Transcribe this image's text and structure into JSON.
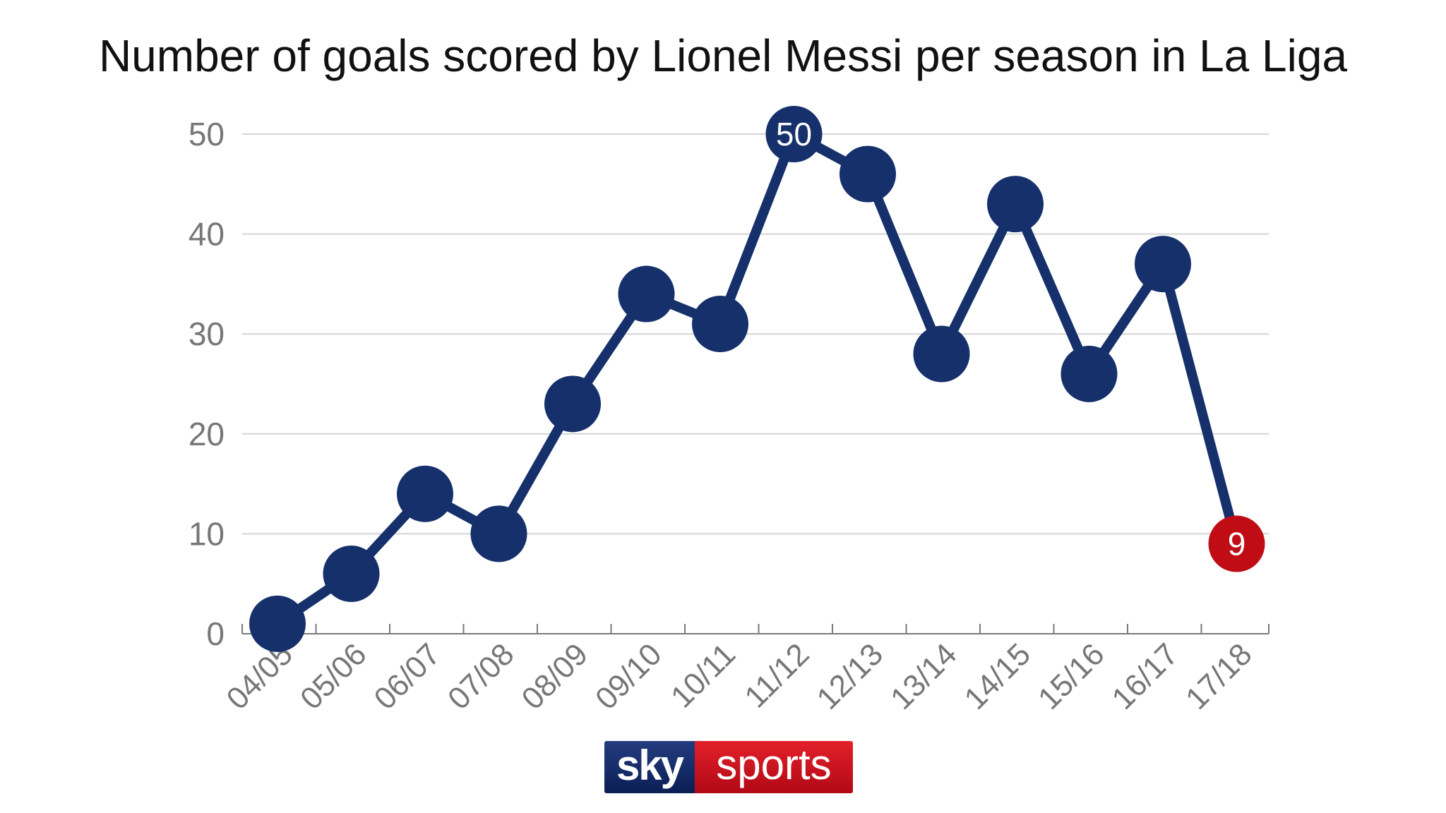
{
  "chart_data": {
    "type": "line",
    "title": "Number of goals scored by Lionel Messi per season in La Liga",
    "xlabel": "",
    "ylabel": "",
    "categories": [
      "04/05",
      "05/06",
      "06/07",
      "07/08",
      "08/09",
      "09/10",
      "10/11",
      "11/12",
      "12/13",
      "13/14",
      "14/15",
      "15/16",
      "16/17",
      "17/18"
    ],
    "values": [
      1,
      6,
      14,
      10,
      23,
      34,
      31,
      50,
      46,
      28,
      43,
      26,
      37,
      9
    ],
    "ylim": [
      0,
      50
    ],
    "yticks": [
      "0",
      "10",
      "20",
      "30",
      "40",
      "50"
    ],
    "data_labels": [
      {
        "category": "11/12",
        "text": "50"
      },
      {
        "category": "17/18",
        "text": "9"
      }
    ],
    "grid": true,
    "legend": "none",
    "colors": {
      "line": "#15306b",
      "highlight": "#c00d15",
      "grid": "#d4d4d4",
      "axis": "#7a7a7a",
      "tick_text": "#777777"
    }
  },
  "logo": {
    "part1": "sky",
    "part2": "sports",
    "colors": {
      "sky": "#1b3372",
      "sports": "#d0141f"
    }
  }
}
